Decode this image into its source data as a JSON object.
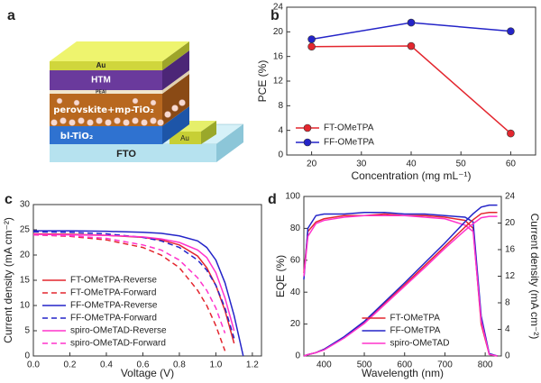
{
  "diagram": {
    "panel_label": "a",
    "layers": [
      "Au",
      "HTM",
      "PEAI",
      "perovskite+mp-TiO₂",
      "bl-TiO₂",
      "Au",
      "FTO"
    ]
  },
  "chart_data": [
    {
      "type": "line",
      "panel_label": "b",
      "markers": true,
      "legend": "lower left",
      "xlabel": "Concentration (mg mL⁻¹)",
      "ylabel": "PCE (%)",
      "x": [
        20,
        40,
        60
      ],
      "xlim": [
        15,
        65
      ],
      "xticks": [
        20,
        30,
        40,
        50,
        60
      ],
      "ylim": [
        0,
        24
      ],
      "yticks": [
        0,
        4,
        8,
        12,
        16,
        20,
        24
      ],
      "series": [
        {
          "name": "FT-OMeTPA",
          "color": "#e3262e",
          "values": [
            17.6,
            17.7,
            3.5
          ]
        },
        {
          "name": "FF-OMeTPA",
          "color": "#2424c8",
          "values": [
            18.8,
            21.5,
            20.1
          ]
        }
      ]
    },
    {
      "type": "line",
      "panel_label": "c",
      "markers": false,
      "legend": "lower left",
      "xlabel": "Voltage (V)",
      "ylabel": "Current density (mA cm⁻²)",
      "x": [
        0,
        0.2,
        0.4,
        0.6,
        0.7,
        0.8,
        0.9,
        0.95,
        1.0,
        1.05,
        1.1,
        1.15
      ],
      "xlim": [
        0,
        1.25
      ],
      "xticks": [
        {
          "value": 0,
          "label": "0.0"
        },
        0.2,
        0.4,
        0.6,
        0.8,
        {
          "value": 1,
          "label": "1.0"
        },
        1.2
      ],
      "ylim": [
        0,
        30
      ],
      "yticks": [
        0,
        5,
        10,
        15,
        20,
        25,
        30
      ],
      "series": [
        {
          "name": "FT-OMeTPA-Reverse",
          "color": "#e3262e",
          "dash": false,
          "values": [
            24.2,
            24.1,
            23.9,
            23.5,
            23.0,
            22.0,
            19.8,
            17.5,
            14,
            9,
            2.5,
            null
          ]
        },
        {
          "name": "FT-OMeTPA-Forward",
          "color": "#e3262e",
          "dash": true,
          "values": [
            24.0,
            23.7,
            23.0,
            21.5,
            20.0,
            17.5,
            13,
            10,
            6,
            1,
            null,
            null
          ]
        },
        {
          "name": "FF-OMeTPA-Reverse",
          "color": "#2424c8",
          "dash": false,
          "values": [
            24.8,
            24.8,
            24.7,
            24.5,
            24.3,
            23.8,
            22.8,
            21.5,
            19,
            14.5,
            8,
            0
          ]
        },
        {
          "name": "FF-OMeTPA-Forward",
          "color": "#2424c8",
          "dash": true,
          "values": [
            24.6,
            24.5,
            24.2,
            23.5,
            22.8,
            21.5,
            19,
            17,
            14,
            9.5,
            3.5,
            null
          ]
        },
        {
          "name": "spiro-OMeTAD-Reverse",
          "color": "#ff33cc",
          "dash": false,
          "values": [
            24.1,
            24.0,
            23.9,
            23.6,
            23.2,
            22.5,
            21,
            19.5,
            16.5,
            11.5,
            5,
            null
          ]
        },
        {
          "name": "spiro-OMeTAD-Forward",
          "color": "#ff33cc",
          "dash": true,
          "values": [
            24.0,
            23.8,
            23.3,
            22,
            21,
            19,
            15.5,
            13,
            9.5,
            4.5,
            null,
            null
          ]
        }
      ]
    },
    {
      "type": "line",
      "panel_label": "d",
      "markers": false,
      "legend": "lower center",
      "xlabel": "Wavelength (nm)",
      "ylabel": "EQE (%)",
      "y2label": "Current density (mA cm⁻²)",
      "x": [
        350,
        360,
        380,
        400,
        450,
        500,
        550,
        600,
        650,
        700,
        750,
        770,
        790,
        810,
        830
      ],
      "xlim": [
        350,
        840
      ],
      "xticks": [
        400,
        500,
        600,
        700,
        800
      ],
      "ylim": [
        0,
        100
      ],
      "yticks": [
        0,
        20,
        40,
        60,
        80,
        100
      ],
      "y2lim": [
        0,
        24
      ],
      "y2ticks": [
        0,
        4,
        8,
        12,
        16,
        20,
        24
      ],
      "series": [
        {
          "name": "FT-OMeTPA",
          "color": "#e3262e",
          "values": [
            52,
            78,
            84,
            86,
            88,
            88,
            89,
            88,
            88,
            87,
            85,
            80,
            20,
            1,
            0
          ]
        },
        {
          "name": "FF-OMeTPA",
          "color": "#2424c8",
          "values": [
            48,
            80,
            88,
            89,
            89,
            90,
            90,
            89,
            89,
            88,
            87,
            84,
            25,
            1.5,
            0
          ]
        },
        {
          "name": "spiro-OMeTAD",
          "color": "#ff33cc",
          "values": [
            50,
            75,
            83,
            85,
            87,
            88,
            88,
            88,
            87,
            86,
            82,
            78,
            22,
            1,
            0
          ]
        },
        {
          "color": "#e3262e",
          "axis": "y2",
          "values": [
            0,
            0.2,
            0.5,
            1.0,
            2.8,
            5.0,
            7.9,
            10.7,
            13.6,
            16.5,
            19.4,
            20.5,
            21.4,
            21.6,
            21.6
          ]
        },
        {
          "color": "#2424c8",
          "axis": "y2",
          "values": [
            0,
            0.2,
            0.5,
            1.0,
            2.9,
            5.2,
            8.1,
            11.0,
            14.0,
            17.0,
            20.2,
            21.4,
            22.4,
            22.7,
            22.7
          ]
        },
        {
          "color": "#ff33cc",
          "axis": "y2",
          "values": [
            0,
            0.2,
            0.5,
            0.9,
            2.7,
            4.9,
            7.7,
            10.5,
            13.3,
            16.2,
            18.9,
            19.9,
            20.8,
            21.0,
            21.0
          ]
        }
      ]
    }
  ]
}
